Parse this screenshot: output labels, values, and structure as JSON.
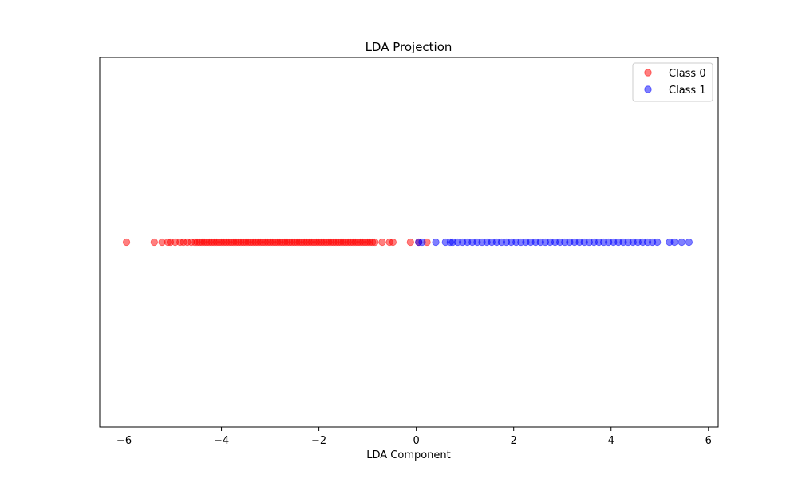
{
  "chart_data": {
    "type": "scatter",
    "title": "LDA Projection",
    "xlabel": "LDA Component",
    "ylabel": "",
    "xlim": [
      -6.5,
      6.2
    ],
    "xticks": [
      -6,
      -4,
      -2,
      0,
      2,
      4,
      6
    ],
    "xtick_labels": [
      "−6",
      "−4",
      "−2",
      "0",
      "2",
      "4",
      "6"
    ],
    "yticks_visible": false,
    "grid": false,
    "legend": {
      "position": "top-right"
    },
    "series": [
      {
        "name": "Class 0",
        "color": "#ff0000",
        "alpha": 0.5,
        "x": [
          -5.95,
          -5.38,
          -5.22,
          -5.1,
          -5.05,
          -4.95,
          -4.85,
          -4.78,
          -4.7,
          -4.62,
          -4.55,
          -4.5,
          -4.45,
          -4.4,
          -4.35,
          -4.3,
          -4.25,
          -4.2,
          -4.15,
          -4.1,
          -4.05,
          -4.0,
          -3.95,
          -3.9,
          -3.85,
          -3.8,
          -3.75,
          -3.7,
          -3.65,
          -3.6,
          -3.55,
          -3.5,
          -3.45,
          -3.4,
          -3.35,
          -3.3,
          -3.25,
          -3.2,
          -3.15,
          -3.1,
          -3.05,
          -3.0,
          -2.95,
          -2.9,
          -2.85,
          -2.8,
          -2.75,
          -2.7,
          -2.65,
          -2.6,
          -2.55,
          -2.5,
          -2.45,
          -2.4,
          -2.35,
          -2.3,
          -2.25,
          -2.2,
          -2.15,
          -2.1,
          -2.05,
          -2.0,
          -1.95,
          -1.9,
          -1.85,
          -1.8,
          -1.75,
          -1.7,
          -1.65,
          -1.6,
          -1.55,
          -1.5,
          -1.45,
          -1.4,
          -1.35,
          -1.3,
          -1.25,
          -1.2,
          -1.15,
          -1.1,
          -1.05,
          -1.0,
          -0.95,
          -0.9,
          -0.85,
          -0.7,
          -0.55,
          -0.48,
          -0.12,
          0.05,
          0.22
        ],
        "y": [
          0,
          0,
          0,
          0,
          0,
          0,
          0,
          0,
          0,
          0,
          0,
          0,
          0,
          0,
          0,
          0,
          0,
          0,
          0,
          0,
          0,
          0,
          0,
          0,
          0,
          0,
          0,
          0,
          0,
          0,
          0,
          0,
          0,
          0,
          0,
          0,
          0,
          0,
          0,
          0,
          0,
          0,
          0,
          0,
          0,
          0,
          0,
          0,
          0,
          0,
          0,
          0,
          0,
          0,
          0,
          0,
          0,
          0,
          0,
          0,
          0,
          0,
          0,
          0,
          0,
          0,
          0,
          0,
          0,
          0,
          0,
          0,
          0,
          0,
          0,
          0,
          0,
          0,
          0,
          0,
          0,
          0,
          0,
          0,
          0,
          0,
          0,
          0,
          0,
          0,
          0
        ]
      },
      {
        "name": "Class 1",
        "color": "#0000ff",
        "alpha": 0.5,
        "x": [
          0.05,
          0.12,
          0.4,
          0.6,
          0.7,
          0.75,
          0.85,
          0.95,
          1.05,
          1.15,
          1.25,
          1.35,
          1.45,
          1.55,
          1.65,
          1.75,
          1.85,
          1.95,
          2.05,
          2.15,
          2.25,
          2.35,
          2.45,
          2.55,
          2.65,
          2.75,
          2.85,
          2.95,
          3.05,
          3.15,
          3.25,
          3.35,
          3.45,
          3.55,
          3.65,
          3.75,
          3.85,
          3.95,
          4.05,
          4.15,
          4.25,
          4.35,
          4.45,
          4.55,
          4.65,
          4.75,
          4.85,
          4.95,
          5.2,
          5.3,
          5.45,
          5.6
        ],
        "y": [
          0,
          0,
          0,
          0,
          0,
          0,
          0,
          0,
          0,
          0,
          0,
          0,
          0,
          0,
          0,
          0,
          0,
          0,
          0,
          0,
          0,
          0,
          0,
          0,
          0,
          0,
          0,
          0,
          0,
          0,
          0,
          0,
          0,
          0,
          0,
          0,
          0,
          0,
          0,
          0,
          0,
          0,
          0,
          0,
          0,
          0,
          0,
          0,
          0,
          0,
          0,
          0
        ]
      }
    ]
  }
}
